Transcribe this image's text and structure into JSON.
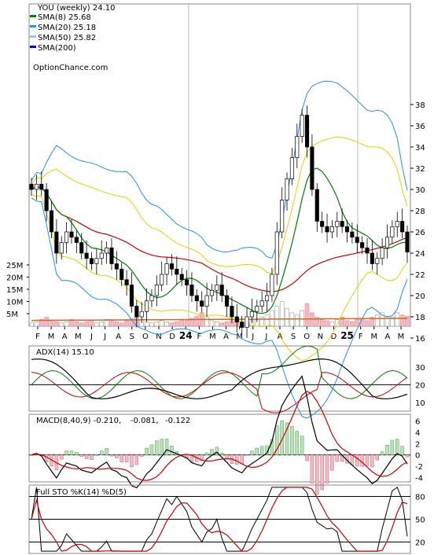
{
  "chart_data": [
    {
      "type": "candlestick",
      "title": "YOU (weekly) 24.10",
      "source": "OptionChance.com",
      "ylim": [
        14,
        39.5
      ],
      "y_ticks": [
        16,
        18,
        20,
        22,
        24,
        26,
        28,
        30,
        32,
        34,
        36,
        38
      ],
      "x_ticks": [
        "F",
        "M",
        "A",
        "M",
        "J",
        "J",
        "A",
        "S",
        "O",
        "N",
        "D",
        "24",
        "F",
        "M",
        "A",
        "M",
        "J",
        "J",
        "A",
        "S",
        "O",
        "N",
        "D",
        "25",
        "F",
        "M",
        "A",
        "M"
      ],
      "legend": [
        {
          "label": "SMA(8) 25.68",
          "color": "#008000"
        },
        {
          "label": "SMA(20) 25.18",
          "color": "#1e90ff"
        },
        {
          "label": "SMA(50) 25.82",
          "color": "#87ceeb"
        },
        {
          "label": "SMA(200)",
          "color": "#0000cd"
        }
      ],
      "close": [
        30.0,
        30.5,
        30.0,
        28.0,
        26.0,
        24.0,
        25.0,
        26.0,
        25.5,
        25.0,
        24.0,
        23.5,
        23.0,
        23.5,
        24.0,
        24.5,
        23.0,
        22.5,
        21.5,
        21.0,
        19.0,
        18.0,
        18.5,
        19.5,
        20.0,
        21.0,
        22.0,
        23.0,
        22.5,
        22.0,
        21.5,
        21.0,
        20.0,
        19.5,
        19.0,
        20.0,
        20.5,
        21.0,
        20.0,
        19.0,
        18.0,
        17.5,
        17.0,
        18.0,
        18.5,
        19.0,
        19.5,
        20.0,
        22.0,
        26.0,
        29.0,
        31.0,
        33.0,
        35.0,
        37.0,
        34.0,
        30.0,
        27.0,
        26.5,
        26.0,
        26.5,
        27.0,
        26.5,
        26.0,
        25.5,
        25.0,
        24.5,
        24.0,
        23.0,
        23.5,
        24.5,
        25.5,
        26.5,
        27.0,
        26.0,
        24.1
      ],
      "volume_axis_ticks": [
        "25M",
        "20M",
        "15M",
        "10M",
        "5M"
      ],
      "volume_axis_values": [
        25,
        20,
        15,
        10,
        5
      ],
      "volume_ylim": [
        0,
        28
      ]
    },
    {
      "type": "line",
      "title": "ADX(14) 15.10",
      "ylim": [
        5,
        42
      ],
      "y_ticks": [
        10,
        20,
        30
      ]
    },
    {
      "type": "line",
      "title": "MACD(8,40,9) -0.210,",
      "values_text": [
        "-0.081,",
        "-0.122"
      ],
      "values_colors": [
        "#ff0000",
        "#1e63c8"
      ],
      "ylim": [
        -4.8,
        7.2
      ],
      "y_ticks": [
        -4,
        -2,
        0,
        2,
        4,
        6
      ]
    },
    {
      "type": "line",
      "title": "Full STO %K(14) %D(5)",
      "ylim": [
        5,
        95
      ],
      "y_ticks": [
        20,
        50,
        80
      ]
    }
  ]
}
